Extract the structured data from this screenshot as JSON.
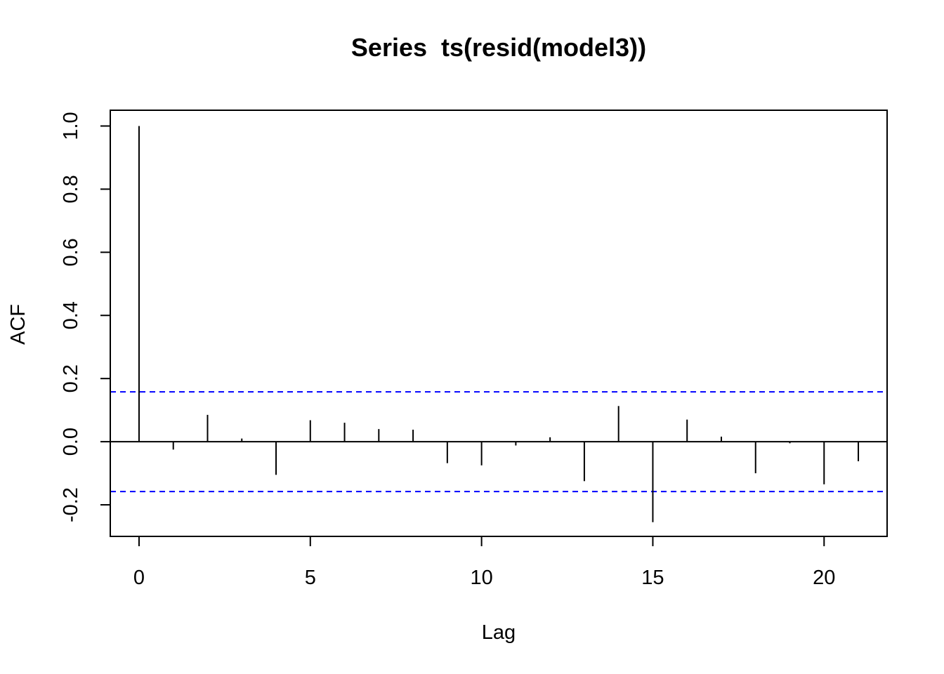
{
  "chart_data": {
    "type": "bar",
    "title": "Series  ts(resid(model3))",
    "xlabel": "Lag",
    "ylabel": "ACF",
    "xlim": [
      -0.84,
      21.84
    ],
    "ylim": [
      -0.3,
      1.05
    ],
    "x_ticks": [
      0,
      5,
      10,
      15,
      20
    ],
    "x_tick_labels": [
      "0",
      "5",
      "10",
      "15",
      "20"
    ],
    "y_ticks": [
      -0.2,
      0.0,
      0.2,
      0.4,
      0.6,
      0.8,
      1.0
    ],
    "y_tick_labels": [
      "-0.2",
      "0.0",
      "0.2",
      "0.4",
      "0.6",
      "0.8",
      "1.0"
    ],
    "lags": [
      0,
      1,
      2,
      3,
      4,
      5,
      6,
      7,
      8,
      9,
      10,
      11,
      12,
      13,
      14,
      15,
      16,
      17,
      18,
      19,
      20,
      21
    ],
    "values": [
      1.0,
      -0.025,
      0.085,
      0.01,
      -0.105,
      0.068,
      0.06,
      0.04,
      0.038,
      -0.068,
      -0.075,
      -0.012,
      0.014,
      -0.125,
      0.113,
      -0.255,
      0.07,
      0.016,
      -0.1,
      -0.005,
      -0.135,
      -0.062
    ],
    "confidence_bound": 0.158,
    "confidence_color": "#0000ff",
    "grid": false
  }
}
